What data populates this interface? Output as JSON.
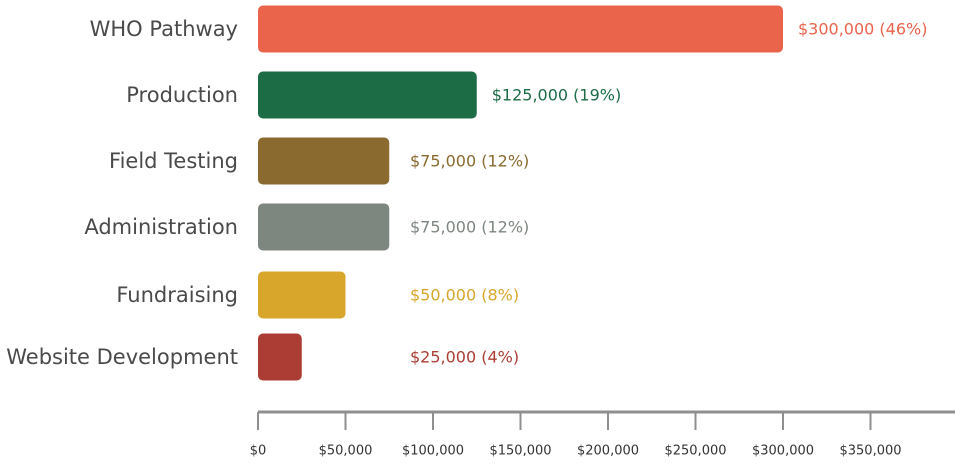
{
  "chart_data": {
    "type": "bar",
    "orientation": "horizontal",
    "title": "",
    "xlabel": "",
    "ylabel": "",
    "xlim": [
      0,
      395000
    ],
    "grid": false,
    "legend": "none",
    "categories": [
      "WHO Pathway",
      "Production",
      "Field Testing",
      "Administration",
      "Fundraising",
      "Website Development"
    ],
    "values": [
      300000,
      125000,
      75000,
      75000,
      50000,
      25000
    ],
    "value_labels": [
      "$300,000 (46%)",
      "$125,000 (19%)",
      "$75,000 (12%)",
      "$75,000 (12%)",
      "$50,000 (8%)",
      "$25,000 (4%)"
    ],
    "colors": [
      "#ea644c",
      "#1c6c46",
      "#8a6a2f",
      "#7d867f",
      "#d8a62a",
      "#ab3d34"
    ],
    "x_ticks": [
      0,
      50000,
      100000,
      150000,
      200000,
      250000,
      300000,
      350000
    ],
    "x_tick_labels": [
      "$0",
      "$50,000",
      "$100,000",
      "$150,000",
      "$200,000",
      "$250,000",
      "$300,000",
      "$350,000"
    ],
    "axis_color": "#8f8f8f"
  }
}
